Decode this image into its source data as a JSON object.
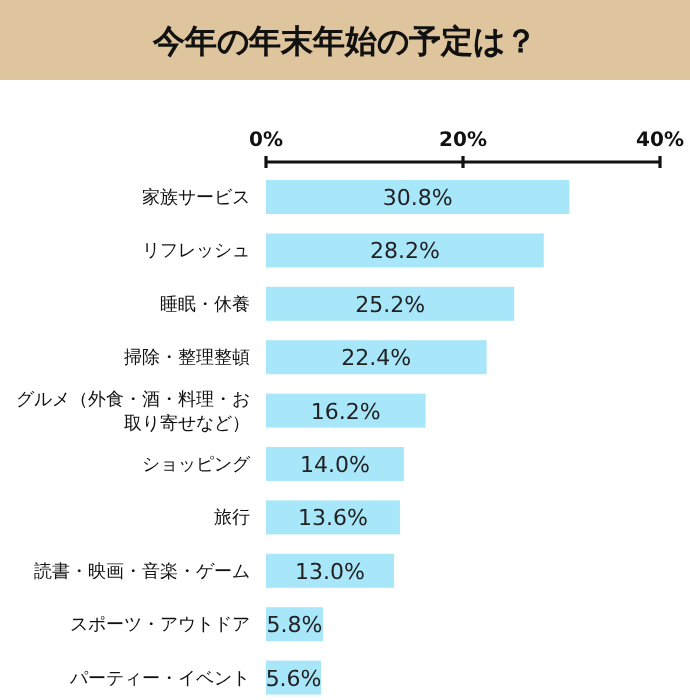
{
  "chart_data": {
    "type": "bar",
    "orientation": "horizontal",
    "title": "今年の年末年始の予定は？",
    "categories": [
      "家族サービス",
      "リフレッシュ",
      "睡眠・休養",
      "掃除・整理整頓",
      "グルメ（外食・酒・料理・お取り寄せなど）",
      "ショッピング",
      "旅行",
      "読書・映画・音楽・ゲーム",
      "スポーツ・アウトドア",
      "パーティー・イベント"
    ],
    "values": [
      30.8,
      28.2,
      25.2,
      22.4,
      16.2,
      14.0,
      13.6,
      13.0,
      5.8,
      5.6
    ],
    "value_labels": [
      "30.8%",
      "28.2%",
      "25.2%",
      "22.4%",
      "16.2%",
      "14.0%",
      "13.6%",
      "13.0%",
      "5.8%",
      "5.6%"
    ],
    "color": "#a8e6fa",
    "xlim": [
      0,
      40
    ],
    "xticks": [
      {
        "value": 0,
        "label": "0%"
      },
      {
        "value": 20,
        "label": "20%"
      },
      {
        "value": 40,
        "label": "40%"
      }
    ]
  }
}
